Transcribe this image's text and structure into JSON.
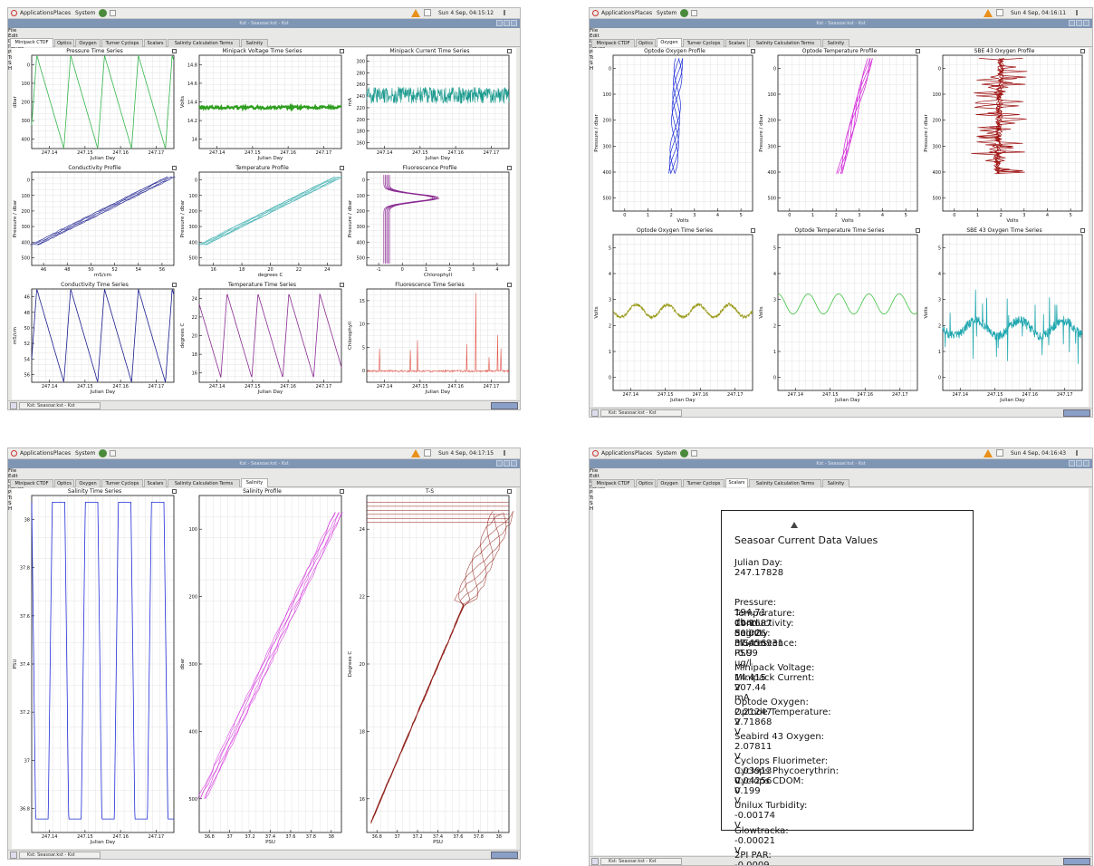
{
  "windows": [
    {
      "key": "w1",
      "time": "Sun  4 Sep, 04:15:12"
    },
    {
      "key": "w2",
      "time": "Sun  4 Sep, 04:16:11"
    },
    {
      "key": "w3",
      "time": "Sun  4 Sep, 04:17:15"
    },
    {
      "key": "w4",
      "time": "Sun  4 Sep, 04:16:43"
    }
  ],
  "desktop": {
    "applications": "Applications",
    "places": "Places",
    "system": "System"
  },
  "window_title": "Kst - Seasoar.kst - Kst",
  "taskbar_label": "Kst: Seasoar.kst - Kst",
  "menu": [
    "File",
    "Edit",
    "Data",
    "Range",
    "Plots",
    "Tools",
    "Settings",
    "Help"
  ],
  "tabs": [
    "Minipack CTDF",
    "Optics",
    "Oxygen",
    "Turner Cyclops",
    "Scalars",
    "Salinity Calculation Terms",
    "Salinity"
  ],
  "active_tab": {
    "w1": 0,
    "w2": 2,
    "w3": 6,
    "w4": 4
  },
  "colors": {
    "green": "#33b54a",
    "darkgreen": "#2e9e1e",
    "teal": "#1b9a8e",
    "navy": "#1a1d8e",
    "cyan": "#2aa7a9",
    "purple": "#8a2a92",
    "blue": "#1f2fd8",
    "magenta": "#d01fd8",
    "darkred": "#9e1010",
    "olive": "#9a9a1a",
    "red": "#e2574c",
    "oxgreen": "#3fc23f",
    "oxcyan": "#21a8b0",
    "brownred": "#8e1c14"
  },
  "panels": {
    "w1": [
      {
        "title": "Pressure Time Series",
        "xlabel": "Julian Day",
        "ylabel": "dbar",
        "xticks": [
          "247.14",
          "247.15",
          "247.16",
          "247.17"
        ],
        "yticks": [
          "0",
          "100",
          "200",
          "300",
          "400"
        ],
        "color": "green",
        "kind": "pressure"
      },
      {
        "title": "Minipack Voltage Time Series",
        "xlabel": "Julian Day",
        "ylabel": "Volts",
        "xticks": [
          "247.14",
          "247.15",
          "247.16",
          "247.17"
        ],
        "yticks": [
          "14.8",
          "14.6",
          "14.4",
          "14.2",
          "14"
        ],
        "color": "darkgreen",
        "kind": "voltage"
      },
      {
        "title": "Minipack Current Time Series",
        "xlabel": "Julian Day",
        "ylabel": "mA",
        "xticks": [
          "247.14",
          "247.15",
          "247.16",
          "247.17"
        ],
        "yticks": [
          "300",
          "280",
          "260",
          "240",
          "220",
          "200",
          "180",
          "160"
        ],
        "color": "teal",
        "kind": "current"
      },
      {
        "title": "Conductivity Profile",
        "xlabel": "mS/cm",
        "ylabel": "Pressure / dbar",
        "xticks": [
          "46",
          "48",
          "50",
          "52",
          "54",
          "56"
        ],
        "yticks": [
          "0",
          "100",
          "200",
          "300",
          "400",
          "500"
        ],
        "color": "navy",
        "kind": "profile"
      },
      {
        "title": "Temperature Profile",
        "xlabel": "degrees C",
        "ylabel": "Pressure / dbar",
        "xticks": [
          "16",
          "18",
          "20",
          "22",
          "24"
        ],
        "yticks": [
          "0",
          "100",
          "200",
          "300",
          "400",
          "500"
        ],
        "color": "cyan",
        "kind": "profile"
      },
      {
        "title": "Fluorescence Profile",
        "xlabel": "Chlorophyll",
        "ylabel": "Pressure / dbar",
        "xticks": [
          "-1",
          "0",
          "1",
          "2",
          "3",
          "4"
        ],
        "yticks": [
          "0",
          "100",
          "200",
          "300",
          "400",
          "500"
        ],
        "color": "purple",
        "kind": "fluorprof"
      },
      {
        "title": "Conductivity Time Series",
        "xlabel": "Julian Day",
        "ylabel": "mS/cm",
        "xticks": [
          "247.14",
          "247.15",
          "247.16",
          "247.17"
        ],
        "yticks": [
          "46",
          "48",
          "50",
          "52",
          "54",
          "56"
        ],
        "color": "navy",
        "kind": "pressure"
      },
      {
        "title": "Temperature Time Series",
        "xlabel": "Julian Day",
        "ylabel": "degrees C",
        "xticks": [
          "247.14",
          "247.15",
          "247.16",
          "247.17"
        ],
        "yticks": [
          "24",
          "22",
          "20",
          "18",
          "16"
        ],
        "color": "purple",
        "kind": "tempts"
      },
      {
        "title": "Fluorescence Time Series",
        "xlabel": "Julian Day",
        "ylabel": "Chlorophyll",
        "xticks": [
          "247.14",
          "247.15",
          "247.16",
          "247.17"
        ],
        "yticks": [
          "15",
          "10",
          "5",
          "0"
        ],
        "color": "red",
        "kind": "spikes"
      }
    ],
    "w2": [
      {
        "title": "Optode Oxygen Profile",
        "xlabel": "Volts",
        "ylabel": "Pressure / dbar",
        "xticks": [
          "0",
          "1",
          "2",
          "3",
          "4",
          "5"
        ],
        "yticks": [
          "0",
          "100",
          "200",
          "300",
          "400",
          "500"
        ],
        "color": "blue",
        "kind": "oxprof1"
      },
      {
        "title": "Optode Temperature Profile",
        "xlabel": "Volts",
        "ylabel": "Pressure / dbar",
        "xticks": [
          "0",
          "1",
          "2",
          "3",
          "4",
          "5"
        ],
        "yticks": [
          "0",
          "100",
          "200",
          "300",
          "400",
          "500"
        ],
        "color": "magenta",
        "kind": "oxprof2"
      },
      {
        "title": "SBE 43 Oxygen Profile",
        "xlabel": "Volts",
        "ylabel": "Pressure / dbar",
        "xticks": [
          "0",
          "1",
          "2",
          "3",
          "4",
          "5"
        ],
        "yticks": [
          "0",
          "100",
          "200",
          "300",
          "400",
          "500"
        ],
        "color": "darkred",
        "kind": "oxprof3"
      },
      {
        "title": "Optode Oxygen Time Series",
        "xlabel": "Julian Day",
        "ylabel": "Volts",
        "xticks": [
          "247.14",
          "247.15",
          "247.16",
          "247.17"
        ],
        "yticks": [
          "5",
          "4",
          "3",
          "2",
          "1",
          "0"
        ],
        "color": "olive",
        "kind": "oxts1"
      },
      {
        "title": "Optode Temperature Time Series",
        "xlabel": "Julian Day",
        "ylabel": "Volts",
        "xticks": [
          "247.14",
          "247.15",
          "247.16",
          "247.17"
        ],
        "yticks": [
          "5",
          "4",
          "3",
          "2",
          "1",
          "0"
        ],
        "color": "oxgreen",
        "kind": "oxts2"
      },
      {
        "title": "SBE 43 Oxygen Time Series",
        "xlabel": "Julian Day",
        "ylabel": "Volts",
        "xticks": [
          "247.14",
          "247.15",
          "247.16",
          "247.17"
        ],
        "yticks": [
          "5",
          "4",
          "3",
          "2",
          "1",
          "0"
        ],
        "color": "oxcyan",
        "kind": "oxts3"
      }
    ],
    "w3": [
      {
        "title": "Salinity Time Series",
        "xlabel": "Julian Day",
        "ylabel": "PSU",
        "xticks": [
          "247.14",
          "247.15",
          "247.16",
          "247.17"
        ],
        "yticks": [
          "38",
          "37.8",
          "37.6",
          "37.4",
          "37.2",
          "37",
          "36.8"
        ],
        "color": "blue",
        "kind": "salts"
      },
      {
        "title": "Salinity Profile",
        "xlabel": "PSU",
        "ylabel": "dbar",
        "xticks": [
          "36.8",
          "37",
          "37.2",
          "37.4",
          "37.6",
          "37.8",
          "38"
        ],
        "yticks": [
          "100",
          "200",
          "300",
          "400",
          "500"
        ],
        "color": "magenta",
        "kind": "salprof"
      },
      {
        "title": "T-S",
        "xlabel": "PSU",
        "ylabel": "Degrees C",
        "xticks": [
          "36.8",
          "37",
          "37.2",
          "37.4",
          "37.6",
          "37.8",
          "38"
        ],
        "yticks": [
          "24",
          "22",
          "20",
          "18",
          "16"
        ],
        "color": "brownred",
        "kind": "ts"
      }
    ]
  },
  "scalars": {
    "title": "Seasoar Current Data Values",
    "rows": [
      {
        "label": "Julian Day:",
        "value": "247.17828",
        "unit": ""
      },
      {
        "label": "Pressure:",
        "value": "194.71",
        "unit": "dbar"
      },
      {
        "label": "Temperature:",
        "value": "19.1687",
        "unit": "deg C"
      },
      {
        "label": "Conductivity:",
        "value": "50.026",
        "unit": "mS/cm"
      },
      {
        "label": "Salinity:",
        "value": "37.456931",
        "unit": "PSU"
      },
      {
        "label": "Fluorescence:",
        "value": "-0.99",
        "unit": "ug/l"
      },
      {
        "label": "Minipack Voltage:",
        "value": "14.415",
        "unit": "V"
      },
      {
        "label": "Minipack Current:",
        "value": "207.44",
        "unit": "mA"
      },
      {
        "label": "Optode Oxygen:",
        "value": "2.21247",
        "unit": "V"
      },
      {
        "label": "Optode Temperature:",
        "value": "2.71868",
        "unit": "V"
      },
      {
        "label": "Seabird 43 Oxygen:",
        "value": "2.07811",
        "unit": "V"
      },
      {
        "label": "Cyclops Fluorimeter:",
        "value": "0.03913",
        "unit": "V"
      },
      {
        "label": "Cyclops Phycoerythrin:",
        "value": "0.04256",
        "unit": "V"
      },
      {
        "label": "Cyclops CDOM:",
        "value": "0.199",
        "unit": "V"
      },
      {
        "label": "Unilux Turbidity:",
        "value": "-0.00174",
        "unit": "V"
      },
      {
        "label": "Glowtracka:",
        "value": "-0.00021",
        "unit": "V"
      },
      {
        "label": "2PI PAR:",
        "value": "-0.0009",
        "unit": "V"
      }
    ]
  }
}
